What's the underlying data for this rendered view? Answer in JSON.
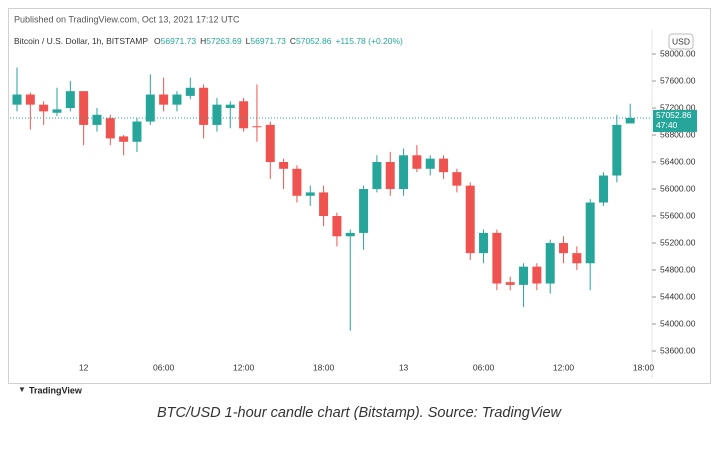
{
  "chart_data": {
    "type": "candlestick",
    "published": "Published on TradingView.com, Oct 13, 2021 17:12 UTC",
    "symbol": "Bitcoin / U.S. Dollar, 1h, BITSTAMP",
    "ohlc_header": [
      {
        "key": "O",
        "value": "56971.73"
      },
      {
        "key": "H",
        "value": "57263.69"
      },
      {
        "key": "L",
        "value": "56971.73"
      },
      {
        "key": "C",
        "value": "57052.86"
      }
    ],
    "change": "+115.78 (+0.20%)",
    "currency": "USD",
    "categories": [
      null,
      null,
      null,
      null,
      null,
      "12",
      null,
      null,
      null,
      null,
      null,
      "06:00",
      null,
      null,
      null,
      null,
      null,
      "12:00",
      null,
      null,
      null,
      null,
      null,
      "18:00",
      null,
      null,
      null,
      null,
      null,
      "13",
      null,
      null,
      null,
      null,
      null,
      "06:00",
      null,
      null,
      null,
      null,
      null,
      "12:00",
      null,
      null,
      null,
      null,
      null,
      "18:00"
    ],
    "open": [
      57250,
      57400,
      57250,
      57130,
      57200,
      57450,
      56950,
      57050,
      56780,
      56700,
      57000,
      57400,
      57250,
      57380,
      57500,
      56950,
      57200,
      57300,
      56930,
      56950,
      56400,
      56300,
      55900,
      55950,
      55600,
      55300,
      55350,
      56000,
      56400,
      56000,
      56500,
      56300,
      56450,
      56250,
      56050,
      55050,
      55350,
      54620,
      54580,
      54850,
      54600,
      55200,
      55050,
      54900,
      55800,
      56200,
      56971.73,
      null
    ],
    "high": [
      57800,
      57430,
      57300,
      57500,
      57600,
      57450,
      57200,
      57100,
      56800,
      57050,
      57700,
      57650,
      57450,
      57650,
      57550,
      57350,
      57300,
      57350,
      57550,
      57000,
      56450,
      56350,
      56050,
      56050,
      55650,
      55400,
      56050,
      56500,
      56550,
      56600,
      56650,
      56500,
      56500,
      56300,
      56100,
      55400,
      55400,
      54700,
      54900,
      54900,
      55250,
      55300,
      55150,
      55850,
      56250,
      57100,
      57263.69,
      null
    ],
    "low": [
      57150,
      56880,
      56950,
      57080,
      57150,
      56650,
      56850,
      56650,
      56500,
      56550,
      56950,
      57150,
      57150,
      57330,
      56750,
      56850,
      56900,
      56850,
      56700,
      56150,
      56000,
      55800,
      55750,
      55450,
      55150,
      53900,
      55100,
      55950,
      55900,
      55900,
      56250,
      56200,
      56150,
      55950,
      54950,
      54900,
      54500,
      54500,
      54250,
      54500,
      54450,
      54900,
      54800,
      54500,
      55750,
      56100,
      56971.73,
      null
    ],
    "close": [
      57400,
      57250,
      57150,
      57180,
      57450,
      56950,
      57100,
      56750,
      56700,
      57000,
      57400,
      57250,
      57400,
      57500,
      56950,
      57250,
      57250,
      56900,
      56920,
      56400,
      56300,
      55900,
      55950,
      55600,
      55300,
      55350,
      56000,
      56400,
      56000,
      56500,
      56300,
      56450,
      56250,
      56050,
      55050,
      55350,
      54600,
      54580,
      54850,
      54600,
      55200,
      55050,
      54900,
      55800,
      56200,
      56950,
      57052.86,
      null
    ],
    "colors": {
      "up": "#26a69a",
      "down": "#ef5350"
    },
    "ylim": [
      53467,
      58356
    ],
    "yticks": [
      {
        "value": 58000,
        "label": "58000.00"
      },
      {
        "value": 57600,
        "label": "57600.00"
      },
      {
        "value": 57200,
        "label": "57200.00"
      },
      {
        "value": 56800,
        "label": "56800.00"
      },
      {
        "value": 56400,
        "label": "56400.00"
      },
      {
        "value": 56000,
        "label": "56000.00"
      },
      {
        "value": 55600,
        "label": "55600.00"
      },
      {
        "value": 55200,
        "label": "55200.00"
      },
      {
        "value": 54800,
        "label": "54800.00"
      },
      {
        "value": 54400,
        "label": "54400.00"
      },
      {
        "value": 54000,
        "label": "54000.00"
      },
      {
        "value": 53600,
        "label": "53600.00"
      }
    ],
    "last_price": {
      "value": 57052.86,
      "label": "57052.86",
      "countdown": "47:40"
    },
    "logo": "TradingView",
    "caption": "BTC/USD 1-hour candle chart (Bitstamp). Source: TradingView"
  }
}
